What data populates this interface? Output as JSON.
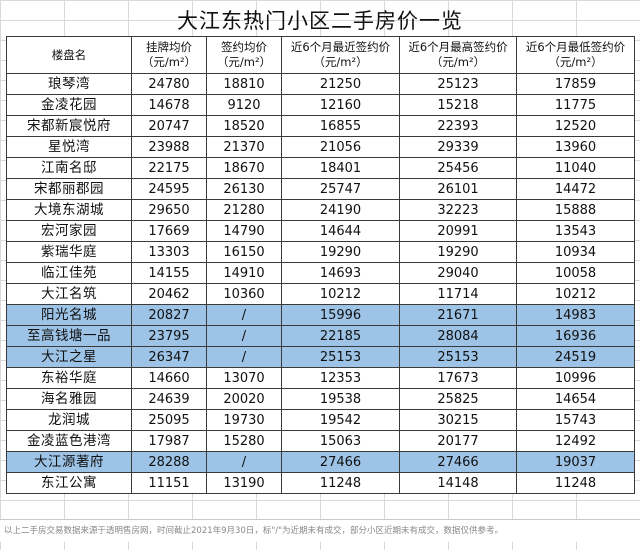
{
  "title": "大江东热门小区二手房价一览",
  "headers": [
    "楼盘名",
    "挂牌均价（元/m²）",
    "签约均价（元/m²）",
    "近6个月最近签约价（元/m²）",
    "近6个月最高签约价（元/m²）",
    "近6个月最低签约价（元/m²）"
  ],
  "rows": [
    {
      "name": "琅琴湾",
      "listing": "24780",
      "signed": "18810",
      "recent": "21250",
      "high": "25123",
      "low": "17859",
      "highlight": false
    },
    {
      "name": "金凌花园",
      "listing": "14678",
      "signed": "9120",
      "recent": "12160",
      "high": "15218",
      "low": "11775",
      "highlight": false
    },
    {
      "name": "宋都新宸悦府",
      "listing": "20747",
      "signed": "18520",
      "recent": "16855",
      "high": "22393",
      "low": "12520",
      "highlight": false
    },
    {
      "name": "星悦湾",
      "listing": "23988",
      "signed": "21370",
      "recent": "21056",
      "high": "29339",
      "low": "13960",
      "highlight": false
    },
    {
      "name": "江南名邸",
      "listing": "22175",
      "signed": "18670",
      "recent": "18401",
      "high": "25456",
      "low": "11040",
      "highlight": false
    },
    {
      "name": "宋都丽郡园",
      "listing": "24595",
      "signed": "26130",
      "recent": "25747",
      "high": "26101",
      "low": "14472",
      "highlight": false
    },
    {
      "name": "大境东湖城",
      "listing": "29650",
      "signed": "21280",
      "recent": "24190",
      "high": "32223",
      "low": "15888",
      "highlight": false
    },
    {
      "name": "宏河家园",
      "listing": "17669",
      "signed": "14790",
      "recent": "14644",
      "high": "20991",
      "low": "13543",
      "highlight": false
    },
    {
      "name": "紫瑞华庭",
      "listing": "13303",
      "signed": "16150",
      "recent": "19290",
      "high": "19290",
      "low": "10934",
      "highlight": false
    },
    {
      "name": "临江佳苑",
      "listing": "14155",
      "signed": "14910",
      "recent": "14693",
      "high": "29040",
      "low": "10058",
      "highlight": false
    },
    {
      "name": "大江名筑",
      "listing": "20462",
      "signed": "10360",
      "recent": "10212",
      "high": "11714",
      "low": "10212",
      "highlight": false
    },
    {
      "name": "阳光名城",
      "listing": "20827",
      "signed": "/",
      "recent": "15996",
      "high": "21671",
      "low": "14983",
      "highlight": true
    },
    {
      "name": "至高钱塘一品",
      "listing": "23795",
      "signed": "/",
      "recent": "22185",
      "high": "28084",
      "low": "16936",
      "highlight": true
    },
    {
      "name": "大江之星",
      "listing": "26347",
      "signed": "/",
      "recent": "25153",
      "high": "25153",
      "low": "24519",
      "highlight": true
    },
    {
      "name": "东裕华庭",
      "listing": "14660",
      "signed": "13070",
      "recent": "12353",
      "high": "17673",
      "low": "10996",
      "highlight": false
    },
    {
      "name": "海名雅园",
      "listing": "24639",
      "signed": "20020",
      "recent": "19538",
      "high": "25825",
      "low": "14654",
      "highlight": false
    },
    {
      "name": "龙润城",
      "listing": "25095",
      "signed": "19730",
      "recent": "19542",
      "high": "30215",
      "low": "15743",
      "highlight": false
    },
    {
      "name": "金凌蓝色港湾",
      "listing": "17987",
      "signed": "15280",
      "recent": "15063",
      "high": "20177",
      "low": "12492",
      "highlight": false
    },
    {
      "name": "大江源著府",
      "listing": "28288",
      "signed": "/",
      "recent": "27466",
      "high": "27466",
      "low": "19037",
      "highlight": true
    },
    {
      "name": "东江公寓",
      "listing": "11151",
      "signed": "13190",
      "recent": "11248",
      "high": "14148",
      "low": "11248",
      "highlight": false
    }
  ],
  "footnote": "以上二手房交易数据来源于透明售房网，时间截止2021年9月30日，标\"/\"为近期未有成交，部分小区近期未有成交，数据仅供参考。",
  "colors": {
    "highlight_row": "#9dc3e6",
    "border": "#3a3a3a",
    "grid": "#d9d9d9"
  }
}
